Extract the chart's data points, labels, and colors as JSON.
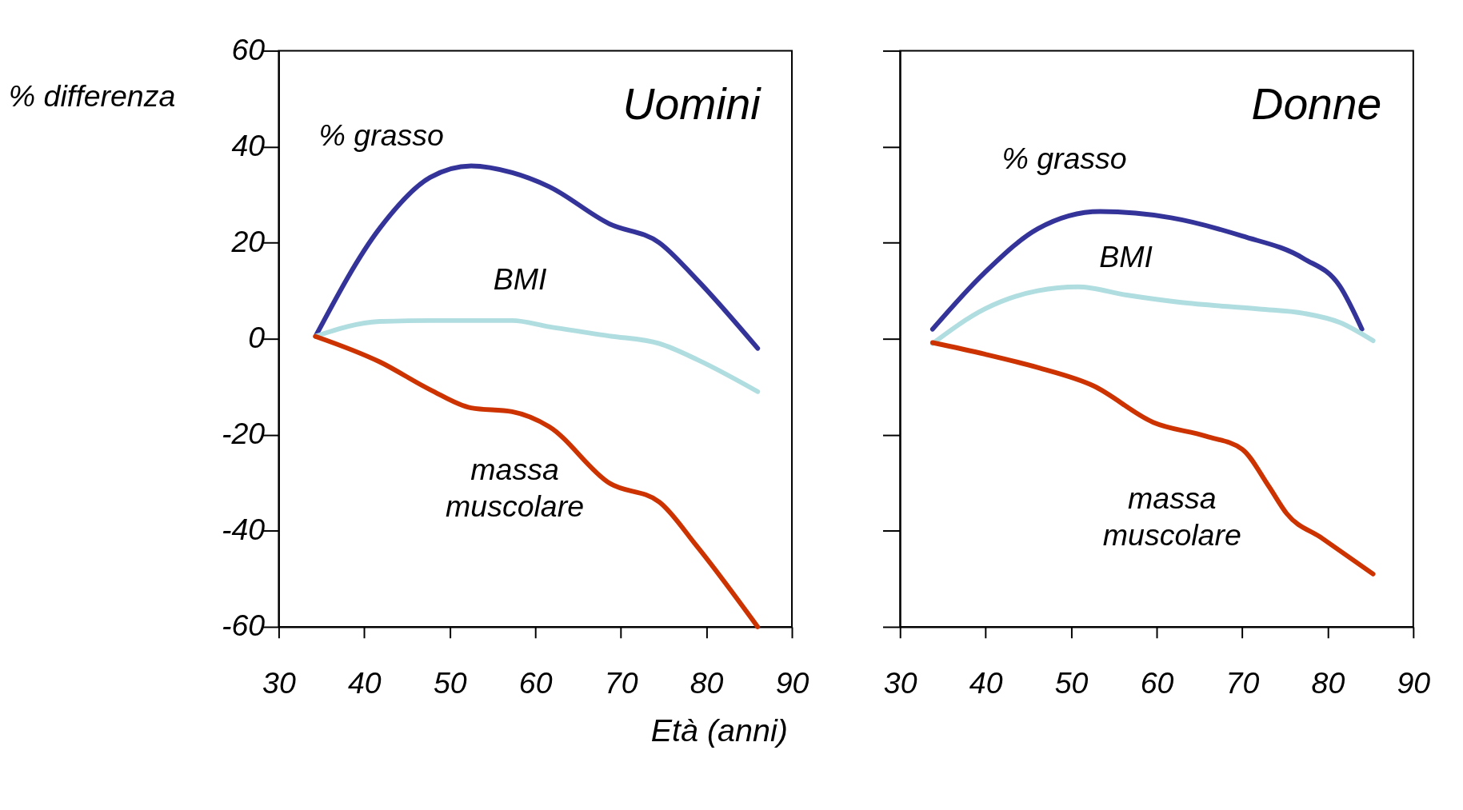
{
  "chart_data": [
    {
      "type": "line",
      "xlabel": "Età (anni)",
      "ylabel": "% differenza",
      "xlim": [
        30,
        90
      ],
      "ylim": [
        -60,
        60
      ],
      "xticks": [
        30,
        40,
        50,
        60,
        70,
        80,
        90
      ],
      "yticks": [
        -60,
        -40,
        -20,
        0,
        20,
        40,
        60
      ],
      "grid": false,
      "line_style": "solid",
      "annotations": [
        "Uomini"
      ],
      "series": [
        {
          "name": "% grasso",
          "color": "#333399",
          "x": [
            34.3,
            41.8,
            47.7,
            52.5,
            57.3,
            61.6,
            68.6,
            74.5,
            78.8,
            86
          ],
          "values": [
            0.5,
            23,
            33.6,
            36,
            34.6,
            31.7,
            24,
            20,
            12.5,
            -2
          ]
        },
        {
          "name": "BMI",
          "color": "#b0dde0",
          "x": [
            34.3,
            41.8,
            47.7,
            57.3,
            61.6,
            68.6,
            74.5,
            79,
            86
          ],
          "values": [
            0.5,
            3.6,
            3.8,
            3.8,
            2.5,
            0.6,
            -1,
            -4.4,
            -11
          ]
        },
        {
          "name": "massa\nmuscolare",
          "color": "#cc3300",
          "x": [
            34.3,
            41.8,
            47.7,
            52.5,
            57.3,
            61.6,
            68.6,
            74.5,
            78.8,
            86
          ],
          "values": [
            0.5,
            -4.8,
            -10.6,
            -14.4,
            -15.2,
            -18.3,
            -30,
            -34,
            -43,
            -60
          ]
        }
      ]
    },
    {
      "type": "line",
      "xlim": [
        30,
        90
      ],
      "ylim": [
        -60,
        60
      ],
      "xticks": [
        30,
        40,
        50,
        60,
        70,
        80,
        90
      ],
      "yticks": [
        {
          "value": -60,
          "label": null
        },
        {
          "value": -40,
          "label": null
        },
        {
          "value": -20,
          "label": null
        },
        {
          "value": 0,
          "label": null
        },
        {
          "value": 20,
          "label": null
        },
        {
          "value": 40,
          "label": null
        },
        {
          "value": 60,
          "label": null
        }
      ],
      "tick_labels": "x",
      "grid": false,
      "line_style": "solid",
      "annotations": [
        "Donne"
      ],
      "series": [
        {
          "name": "% grasso",
          "color": "#333399",
          "x": [
            33.8,
            39.9,
            46.1,
            53.4,
            61.7,
            70,
            77.2,
            81.4,
            84
          ],
          "values": [
            2,
            13.8,
            22.9,
            26.5,
            25.2,
            21.4,
            16.7,
            11,
            2
          ]
        },
        {
          "name": "BMI",
          "color": "#b0dde0",
          "x": [
            33.8,
            39.9,
            46.1,
            50.8,
            56.5,
            62.7,
            72,
            77.2,
            81.4,
            85.3
          ],
          "values": [
            -1,
            6.2,
            10,
            10.8,
            9.1,
            7.6,
            6.2,
            5.3,
            3.4,
            -0.4
          ]
        },
        {
          "name": "massa\nmuscolare",
          "color": "#cc3300",
          "x": [
            33.8,
            39.9,
            46.1,
            52.6,
            59.6,
            65.8,
            70,
            73.1,
            75.2,
            79.3,
            85.3
          ],
          "values": [
            -0.8,
            -3.2,
            -6,
            -9.8,
            -17.4,
            -20.3,
            -23,
            -30.7,
            -36.4,
            -41.5,
            -49
          ]
        }
      ]
    }
  ]
}
